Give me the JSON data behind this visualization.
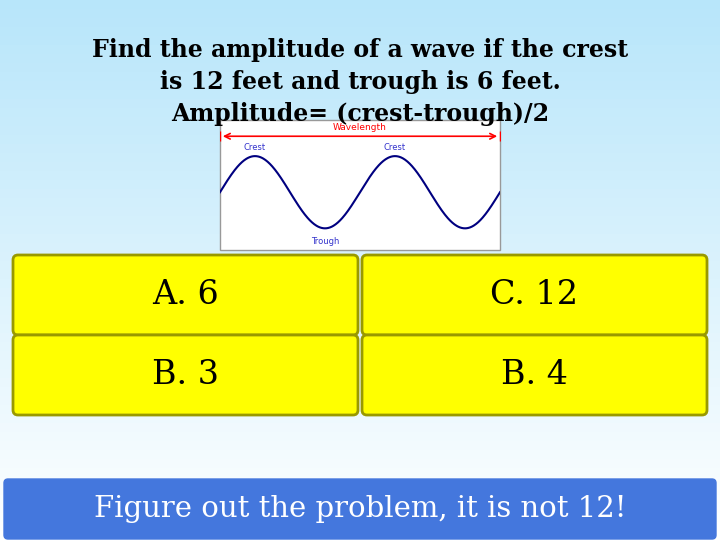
{
  "title_line1": "Find the amplitude of a wave if the crest",
  "title_line2": "is 12 feet and trough is 6 feet.",
  "title_line3": "Amplitude= (crest-trough)/2",
  "answer_buttons": [
    {
      "label": "A. 6",
      "col": 0,
      "row": 0
    },
    {
      "label": "C. 12",
      "col": 1,
      "row": 0
    },
    {
      "label": "B. 3",
      "col": 0,
      "row": 1
    },
    {
      "label": "B. 4",
      "col": 1,
      "row": 1
    }
  ],
  "button_bg": "#ffff00",
  "footer_text": "Figure out the problem, it is not 12!",
  "footer_bg": "#4477dd",
  "footer_text_color": "#ffffff",
  "title_fontsize": 17,
  "button_fontsize": 24,
  "footer_fontsize": 21
}
